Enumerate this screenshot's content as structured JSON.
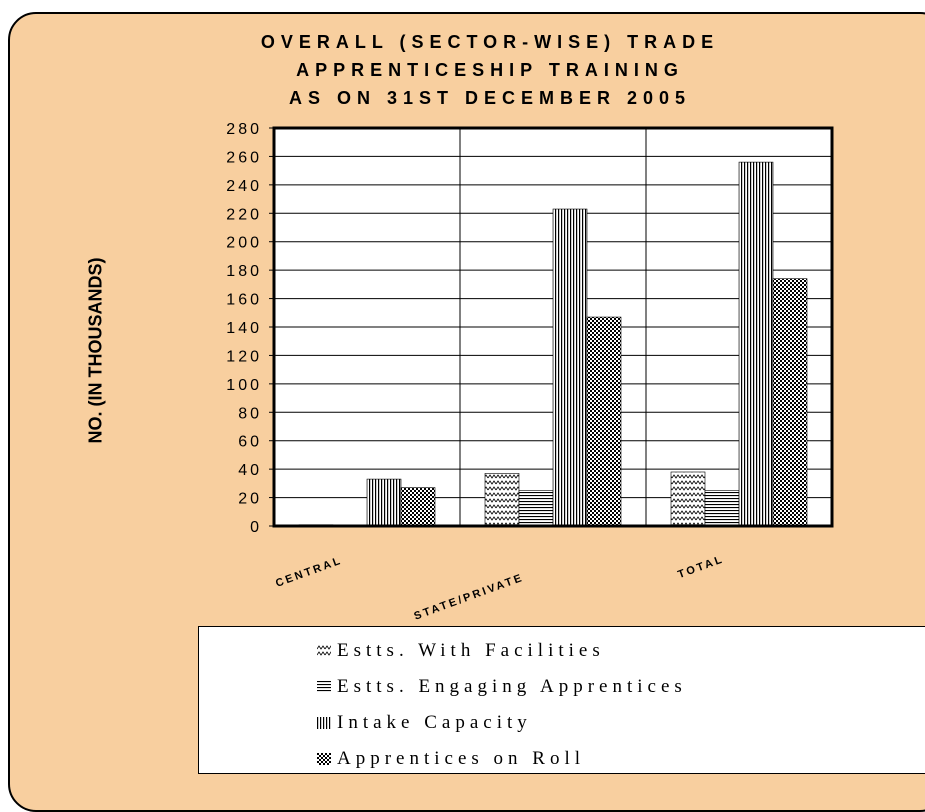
{
  "chart_data": {
    "type": "bar",
    "title_lines": [
      "OVERALL (SECTOR-WISE) TRADE",
      "APPRENTICESHIP TRAINING",
      "AS ON 31ST DECEMBER 2005"
    ],
    "ylabel": "NO. (IN THOUSANDS)",
    "xlabel": "",
    "categories": [
      "CENTRAL",
      "STATE/PRIVATE",
      "TOTAL"
    ],
    "ylim": [
      0,
      280
    ],
    "yticks": [
      0,
      20,
      40,
      60,
      80,
      100,
      120,
      140,
      160,
      180,
      200,
      220,
      240,
      260,
      280
    ],
    "grid": true,
    "legend_position": "bottom",
    "series": [
      {
        "name": "Estts. With Facilities",
        "values": [
          0.9,
          37,
          38
        ],
        "pattern": "zigzag"
      },
      {
        "name": "Estts. Engaging Apprentices",
        "values": [
          0.4,
          25,
          25
        ],
        "pattern": "horizontal-lines"
      },
      {
        "name": "Intake Capacity",
        "values": [
          33,
          223,
          256
        ],
        "pattern": "vertical-lines"
      },
      {
        "name": "Apprentices on Roll",
        "values": [
          27,
          147,
          174
        ],
        "pattern": "checker"
      }
    ]
  },
  "colors": {
    "frame_background": "#f8cf9f",
    "plot_background": "#ffffff",
    "ink": "#000000"
  }
}
